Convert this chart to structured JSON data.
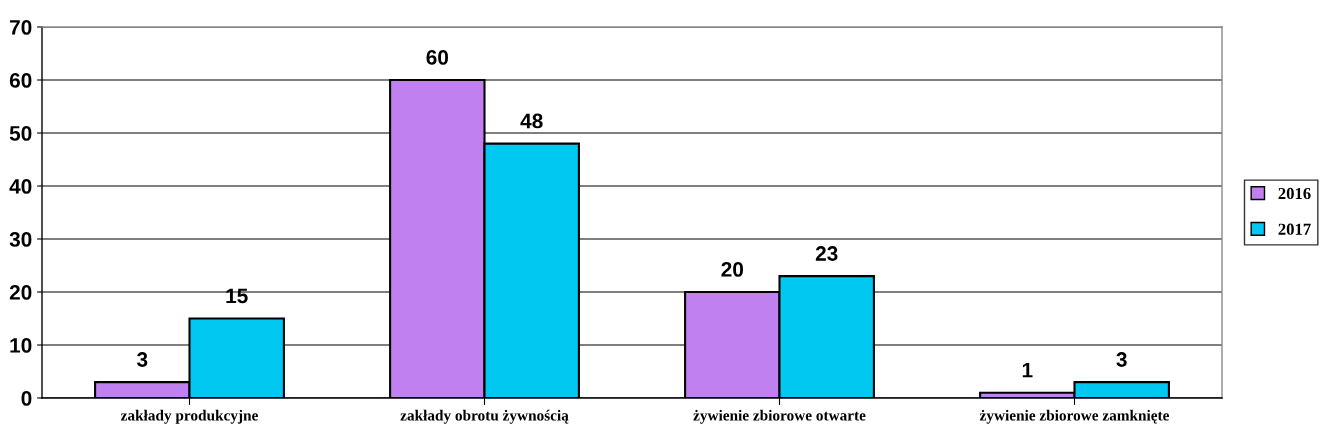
{
  "chart_data": {
    "type": "bar",
    "categories": [
      "zakłady produkcyjne",
      "zakłady obrotu żywnością",
      "żywienie zbiorowe otwarte",
      "żywienie zbiorowe zamknięte"
    ],
    "series": [
      {
        "name": "2016",
        "color": "#c080f0",
        "values": [
          3,
          60,
          20,
          1
        ]
      },
      {
        "name": "2017",
        "color": "#00c8f0",
        "values": [
          15,
          48,
          23,
          3
        ]
      }
    ],
    "ylim": [
      0,
      70
    ],
    "yticks": [
      0,
      10,
      20,
      30,
      40,
      50,
      60,
      70
    ],
    "grid": "y",
    "legend": "right",
    "data_labels": true
  }
}
